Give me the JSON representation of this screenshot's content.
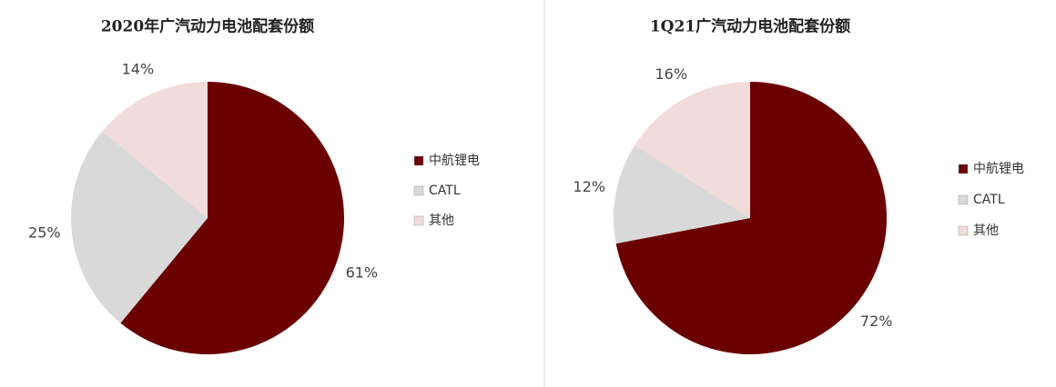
{
  "chart_data": [
    {
      "type": "pie",
      "title": "2020年广汽动力电池配套份额",
      "categories": [
        "中航锂电",
        "CATL",
        "其他"
      ],
      "values": [
        61,
        25,
        14
      ],
      "value_labels": [
        "61%",
        "25%",
        "14%"
      ],
      "colors": [
        "#6b0000",
        "#d9d9d9",
        "#f2dcdb"
      ]
    },
    {
      "type": "pie",
      "title": "1Q21广汽动力电池配套份额",
      "categories": [
        "中航锂电",
        "CATL",
        "其他"
      ],
      "values": [
        72,
        12,
        16
      ],
      "value_labels": [
        "72%",
        "12%",
        "16%"
      ],
      "colors": [
        "#6b0000",
        "#d9d9d9",
        "#f2dcdb"
      ]
    }
  ]
}
